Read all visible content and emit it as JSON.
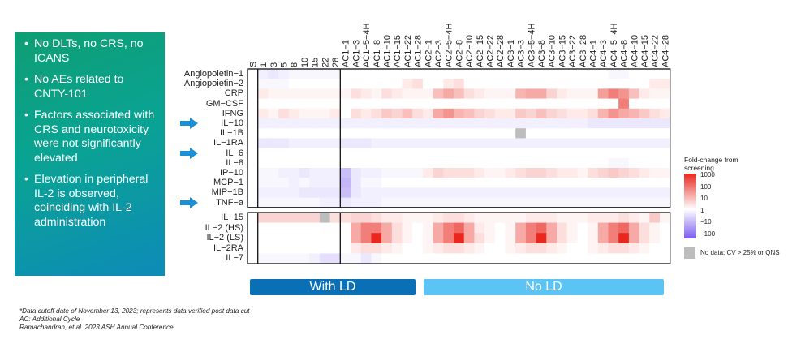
{
  "bullets": [
    "No DLTs, no CRS, no ICANS",
    "No AEs related to CNTY-101",
    "Factors associated with CRS and neurotoxicity were not significantly elevated",
    "Elevation in peripheral IL-2 is observed, coinciding with IL-2 administration"
  ],
  "arrow_color": "#1a8fd6",
  "groups": [
    {
      "label": "With LD",
      "color": "#0b6fb5"
    },
    {
      "label": "No LD",
      "color": "#5cc4f5"
    }
  ],
  "legend": {
    "title": "Fold-change from screening",
    "ticks": [
      "1000",
      "100",
      "10",
      "1",
      "−10",
      "−100"
    ],
    "nodata_label": "No data: CV > 25% or QNS",
    "colors": {
      "high": "#e8281e",
      "neutral": "#ffffff",
      "low": "#7b5cf0",
      "nodata": "#bdbdbd"
    }
  },
  "footnotes": [
    "*Data cutoff date of November 13, 2023; represents data verified post data cut",
    "AC: Additional Cycle",
    "Ramachandran, et al. 2023 ASH Annual Conference"
  ],
  "chart_data": {
    "type": "heatmap",
    "columns": [
      "S",
      "1",
      "3",
      "5",
      "8",
      "10",
      "15",
      "22",
      "28",
      "AC1−1",
      "AC1−3",
      "AC1−5−4H",
      "AC1−8",
      "AC1−10",
      "AC1−15",
      "AC1−22",
      "AC1−28",
      "AC2−1",
      "AC2−3",
      "AC2−5−4H",
      "AC2−8",
      "AC2−10",
      "AC2−15",
      "AC2−22",
      "AC2−28",
      "AC3−1",
      "AC3−3",
      "AC3−5−4H",
      "AC3−8",
      "AC3−10",
      "AC3−15",
      "AC3−22",
      "AC3−28",
      "AC4−1",
      "AC4−3",
      "AC4−5−4H",
      "AC4−8",
      "AC4−10",
      "AC4−15",
      "AC4−22",
      "AC4−28"
    ],
    "rows_top": [
      "Angiopoietin−1",
      "Angiopoietin−2",
      "CRP",
      "GM−CSF",
      "IFNG",
      "IL−10",
      "IL−1B",
      "IL−1RA",
      "IL−6",
      "IL−8",
      "IP−10",
      "MCP−1",
      "MIP−1B",
      "TNF−a"
    ],
    "rows_bottom": [
      "IL−15",
      "IL−2 (HS)",
      "IL−2 (LS)",
      "IL−2RA",
      "IL−7"
    ],
    "arrow_rows": [
      "IL−10",
      "IL−6",
      "TNF−a"
    ],
    "scale": "log fold-change, −100 to 1000",
    "values_top": [
      [
        0,
        -2,
        -3,
        -2,
        -1,
        -1,
        -1,
        -1,
        -1,
        0,
        0,
        0,
        0,
        0,
        0,
        0,
        0,
        0,
        0,
        0,
        0,
        0,
        0,
        0,
        0,
        0,
        0,
        0,
        0,
        0,
        0,
        0,
        0,
        0,
        0,
        -1,
        -1,
        0,
        0,
        0,
        0
      ],
      [
        0,
        -1,
        -1,
        -1,
        0,
        0,
        0,
        0,
        0,
        0,
        0,
        0,
        0,
        0,
        0,
        2,
        3,
        0,
        0,
        2,
        3,
        0,
        0,
        0,
        0,
        0,
        0,
        0,
        0,
        0,
        0,
        0,
        0,
        0,
        0,
        0,
        0,
        0,
        0,
        2,
        2
      ],
      [
        0,
        2,
        1,
        1,
        1,
        1,
        1,
        1,
        1,
        1,
        3,
        2,
        1,
        3,
        2,
        1,
        1,
        1,
        6,
        8,
        6,
        3,
        2,
        1,
        1,
        1,
        7,
        8,
        8,
        4,
        2,
        1,
        1,
        1,
        9,
        12,
        10,
        6,
        2,
        1,
        1
      ],
      [
        0,
        0,
        0,
        0,
        0,
        0,
        0,
        0,
        0,
        0,
        0,
        0,
        0,
        0,
        0,
        0,
        0,
        0,
        0,
        0,
        0,
        0,
        0,
        0,
        0,
        0,
        0,
        0,
        0,
        0,
        0,
        0,
        0,
        0,
        0,
        0,
        12,
        0,
        0,
        0,
        0
      ],
      [
        0,
        2,
        1,
        3,
        2,
        1,
        1,
        1,
        2,
        0,
        3,
        2,
        3,
        5,
        4,
        6,
        3,
        2,
        8,
        10,
        7,
        6,
        4,
        3,
        2,
        2,
        5,
        4,
        6,
        4,
        3,
        2,
        2,
        3,
        7,
        10,
        8,
        7,
        5,
        3,
        2
      ],
      [
        0,
        -2,
        -2,
        -2,
        -2,
        -2,
        -2,
        -2,
        -2,
        -2,
        -2,
        -2,
        -2,
        -2,
        -2,
        -2,
        -2,
        -2,
        -2,
        -2,
        -2,
        -2,
        -2,
        -2,
        -2,
        -2,
        -2,
        -2,
        -2,
        -2,
        -2,
        -2,
        -2,
        -3,
        -3,
        -3,
        -3,
        -3,
        -3,
        -3,
        -3
      ],
      [
        0,
        0,
        0,
        0,
        0,
        0,
        0,
        0,
        0,
        0,
        0,
        0,
        0,
        0,
        0,
        0,
        0,
        0,
        0,
        0,
        0,
        0,
        0,
        0,
        0,
        0,
        "nd",
        0,
        0,
        0,
        0,
        0,
        0,
        0,
        0,
        0,
        0,
        0,
        0,
        0,
        0
      ],
      [
        0,
        -3,
        -3,
        -3,
        -2,
        -2,
        -2,
        -2,
        -2,
        -3,
        -3,
        -3,
        -2,
        -2,
        -2,
        -2,
        -2,
        -2,
        -2,
        -2,
        -2,
        -2,
        -2,
        -2,
        -2,
        -2,
        -2,
        -2,
        -2,
        -2,
        -2,
        -2,
        -2,
        -2,
        -2,
        -2,
        -2,
        -2,
        -2,
        -2,
        -2
      ],
      [
        0,
        0,
        0,
        0,
        0,
        0,
        0,
        0,
        0,
        0,
        0,
        0,
        0,
        0,
        0,
        0,
        0,
        0,
        0,
        0,
        0,
        0,
        0,
        0,
        0,
        0,
        0,
        0,
        0,
        0,
        0,
        0,
        0,
        0,
        0,
        0,
        0,
        0,
        0,
        0,
        0
      ],
      [
        0,
        0,
        0,
        0,
        0,
        0,
        0,
        0,
        0,
        0,
        0,
        0,
        0,
        0,
        0,
        0,
        0,
        0,
        0,
        0,
        0,
        0,
        0,
        0,
        0,
        0,
        0,
        0,
        0,
        0,
        0,
        0,
        0,
        0,
        0,
        -1,
        -1,
        0,
        0,
        0,
        0
      ],
      [
        0,
        -1,
        -1,
        -2,
        -2,
        -3,
        -2,
        -2,
        -2,
        -8,
        -3,
        -2,
        -2,
        -1,
        -1,
        -1,
        -1,
        2,
        4,
        3,
        3,
        3,
        2,
        1,
        1,
        2,
        3,
        4,
        4,
        3,
        2,
        2,
        1,
        3,
        4,
        5,
        4,
        3,
        2,
        1,
        1
      ],
      [
        0,
        -1,
        -1,
        -1,
        -2,
        -1,
        -2,
        -2,
        -2,
        -9,
        -3,
        -1,
        -1,
        0,
        0,
        0,
        0,
        0,
        0,
        0,
        0,
        0,
        0,
        0,
        0,
        0,
        0,
        0,
        0,
        0,
        0,
        0,
        0,
        0,
        0,
        0,
        0,
        0,
        0,
        0,
        0
      ],
      [
        0,
        -2,
        -2,
        -2,
        -2,
        -3,
        -3,
        -3,
        -3,
        -8,
        -3,
        -2,
        -2,
        -2,
        -2,
        -2,
        -2,
        -2,
        -2,
        -2,
        -2,
        -2,
        -2,
        -2,
        -2,
        -2,
        -2,
        -2,
        -2,
        -2,
        -2,
        -2,
        -2,
        -2,
        -2,
        -2,
        -2,
        -2,
        -2,
        -2,
        -2
      ],
      [
        0,
        -1,
        -1,
        -1,
        -1,
        -1,
        -1,
        -2,
        -2,
        -3,
        -2,
        -2,
        -2,
        -1,
        -1,
        -1,
        -1,
        -1,
        -1,
        -1,
        -1,
        -1,
        -1,
        -1,
        -1,
        -1,
        -1,
        -1,
        -1,
        -1,
        -1,
        -1,
        -1,
        -1,
        -1,
        -1,
        -1,
        -1,
        -1,
        -1,
        -1
      ]
    ],
    "values_bottom": [
      [
        0,
        4,
        4,
        4,
        4,
        4,
        4,
        "nd",
        3,
        3,
        4,
        4,
        3,
        2,
        2,
        1,
        1,
        1,
        2,
        3,
        3,
        2,
        1,
        1,
        1,
        1,
        1,
        2,
        2,
        2,
        1,
        1,
        1,
        2,
        2,
        2,
        3,
        2,
        1,
        5,
        1
      ],
      [
        0,
        0,
        0,
        0,
        0,
        0,
        0,
        0,
        0,
        0,
        8,
        12,
        12,
        8,
        3,
        1,
        0,
        1,
        8,
        12,
        14,
        8,
        2,
        1,
        0,
        1,
        8,
        12,
        14,
        8,
        3,
        1,
        0,
        1,
        8,
        12,
        14,
        8,
        3,
        1,
        0
      ],
      [
        0,
        0,
        0,
        0,
        0,
        0,
        0,
        0,
        0,
        0,
        8,
        12,
        20,
        8,
        3,
        1,
        0,
        1,
        8,
        12,
        20,
        8,
        3,
        1,
        0,
        1,
        8,
        12,
        20,
        8,
        3,
        1,
        0,
        1,
        8,
        12,
        20,
        8,
        3,
        1,
        0
      ],
      [
        0,
        0,
        0,
        0,
        0,
        0,
        0,
        0,
        0,
        0,
        2,
        3,
        3,
        2,
        1,
        0,
        0,
        1,
        2,
        3,
        3,
        2,
        1,
        0,
        0,
        1,
        2,
        3,
        3,
        2,
        1,
        0,
        0,
        1,
        2,
        3,
        3,
        2,
        1,
        0,
        0
      ],
      [
        0,
        -1,
        -1,
        -1,
        -1,
        -1,
        -2,
        -4,
        -4,
        -1,
        -1,
        -3,
        -1,
        0,
        0,
        0,
        0,
        0,
        0,
        0,
        0,
        0,
        0,
        0,
        0,
        0,
        0,
        0,
        0,
        0,
        0,
        0,
        0,
        0,
        0,
        0,
        0,
        0,
        0,
        0,
        0
      ]
    ]
  }
}
